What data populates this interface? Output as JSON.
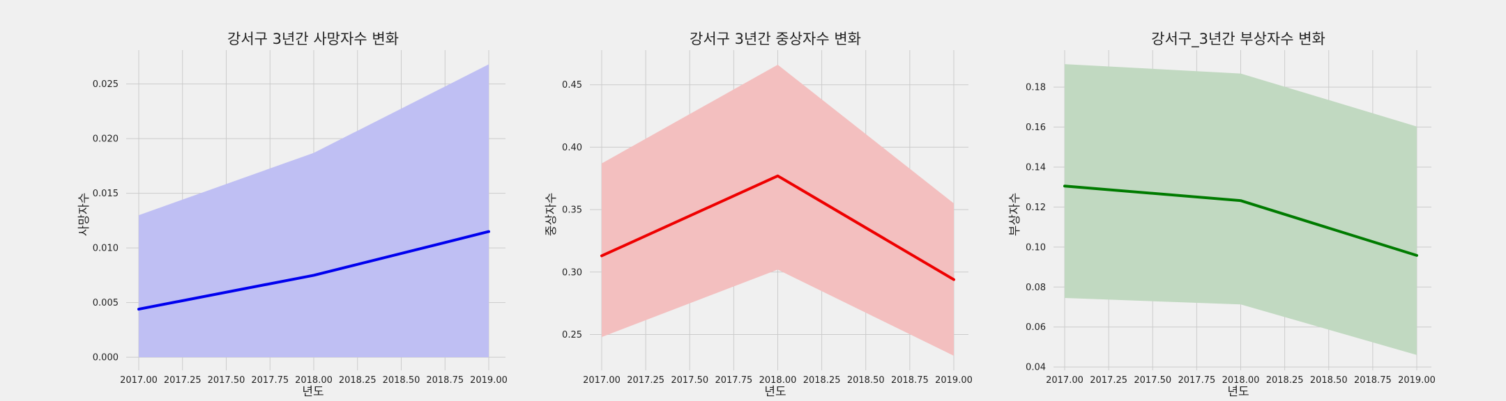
{
  "chart_data": [
    {
      "type": "line",
      "title": "강서구 3년간 사망자수 변화",
      "xlabel": "년도",
      "ylabel": "사망자수",
      "x": [
        2017,
        2018,
        2019
      ],
      "x_ticks": [
        "2017.00",
        "2017.25",
        "2017.50",
        "2017.75",
        "2018.00",
        "2018.25",
        "2018.50",
        "2018.75",
        "2019.00"
      ],
      "y_ticks": [
        "0.000",
        "0.005",
        "0.010",
        "0.015",
        "0.020",
        "0.025"
      ],
      "ylim": [
        -0.0012,
        0.0281
      ],
      "series": [
        {
          "values": [
            0.0044,
            0.0075,
            0.0115
          ]
        }
      ],
      "ci_lower": [
        0.0,
        0.0,
        0.0
      ],
      "ci_upper": [
        0.013,
        0.0187,
        0.0268
      ],
      "line_color": "#0000ee",
      "band_color": "#bfbff3",
      "grid": true
    },
    {
      "type": "line",
      "title": "강서구 3년간 중상자수 변화",
      "xlabel": "년도",
      "ylabel": "중상자수",
      "x": [
        2017,
        2018,
        2019
      ],
      "x_ticks": [
        "2017.00",
        "2017.25",
        "2017.50",
        "2017.75",
        "2018.00",
        "2018.25",
        "2018.50",
        "2018.75",
        "2019.00"
      ],
      "y_ticks": [
        "0.25",
        "0.30",
        "0.35",
        "0.40",
        "0.45"
      ],
      "ylim": [
        0.2213,
        0.4777
      ],
      "series": [
        {
          "values": [
            0.313,
            0.377,
            0.294
          ]
        }
      ],
      "ci_lower": [
        0.248,
        0.302,
        0.233
      ],
      "ci_upper": [
        0.387,
        0.466,
        0.355
      ],
      "line_color": "#ee0000",
      "band_color": "#f3bfbf",
      "grid": true
    },
    {
      "type": "line",
      "title": "강서구_3년간 부상자수 변화",
      "xlabel": "년도",
      "ylabel": "부상자수",
      "x": [
        2017,
        2018,
        2019
      ],
      "x_ticks": [
        "2017.00",
        "2017.25",
        "2017.50",
        "2017.75",
        "2018.00",
        "2018.25",
        "2018.50",
        "2018.75",
        "2019.00"
      ],
      "y_ticks": [
        "0.04",
        "0.06",
        "0.08",
        "0.10",
        "0.12",
        "0.14",
        "0.16",
        "0.18"
      ],
      "ylim": [
        0.0383,
        0.1985
      ],
      "series": [
        {
          "values": [
            0.1305,
            0.1232,
            0.0958
          ]
        }
      ],
      "ci_lower": [
        0.0745,
        0.0713,
        0.046
      ],
      "ci_upper": [
        0.1915,
        0.1868,
        0.1603
      ],
      "line_color": "#007b00",
      "band_color": "#c1d9c1",
      "grid": true
    }
  ]
}
